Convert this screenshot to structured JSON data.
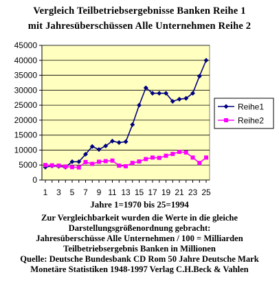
{
  "chart_data": {
    "type": "line",
    "title": "Vergleich Teilbetriebsergebnisse Banken Reihe 1",
    "subtitle": "mit Jahresüberschüssen Alle Unternehmen Reihe 2",
    "xlabel": "Jahre 1=1970 bis 25=1994",
    "ylabel": "",
    "x": [
      1,
      2,
      3,
      4,
      5,
      6,
      7,
      8,
      9,
      10,
      11,
      12,
      13,
      14,
      15,
      16,
      17,
      18,
      19,
      20,
      21,
      22,
      23,
      24,
      25
    ],
    "x_tick_labels": [
      "1",
      "3",
      "5",
      "7",
      "9",
      "11",
      "13",
      "15",
      "17",
      "19",
      "21",
      "23",
      "25"
    ],
    "y_tick_labels": [
      "0",
      "5000",
      "10000",
      "15000",
      "20000",
      "25000",
      "30000",
      "35000",
      "40000",
      "45000"
    ],
    "ylim": [
      0,
      45000
    ],
    "grid": true,
    "legend": "right",
    "series": [
      {
        "name": "Reihe1",
        "color": "#000080",
        "marker": "diamond",
        "values": [
          4300,
          4700,
          4600,
          4300,
          6100,
          6100,
          8600,
          11200,
          10200,
          11400,
          13000,
          12500,
          12800,
          18500,
          25000,
          30800,
          29000,
          29000,
          29000,
          26300,
          27000,
          27300,
          29000,
          34700,
          40000
        ]
      },
      {
        "name": "Reihe2",
        "color": "#ff00ff",
        "marker": "square",
        "values": [
          5000,
          4900,
          4800,
          4500,
          4300,
          4200,
          6000,
          5400,
          6100,
          6300,
          6500,
          4800,
          4600,
          5700,
          6200,
          7000,
          7500,
          7400,
          8100,
          8700,
          9400,
          9200,
          7500,
          5700,
          7500
        ]
      }
    ]
  },
  "caption": [
    "Zur Vergleichbarkeit wurden die Werte in die gleiche",
    "Darstellungsgrößenordnung gebracht:",
    "Jahresüberschüsse Alle Unternehmen / 100 = Milliarden",
    "Teilbetriebsergebnis Banken in Millionen",
    "Quelle:  Deutsche Bundesbank CD Rom 50 Jahre Deutsche Mark",
    "Monetäre Statistiken 1948-1997 Verlag C.H.Beck & Vahlen"
  ],
  "colors": {
    "plot_background": "#ffffc0",
    "grid": "#000000"
  }
}
